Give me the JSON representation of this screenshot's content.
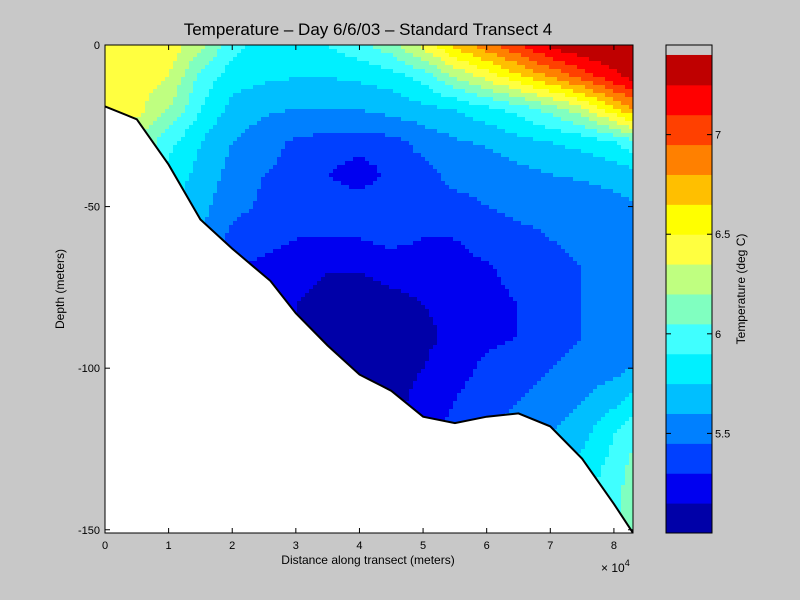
{
  "chart_data": {
    "type": "heatmap",
    "subtype": "filled-contour",
    "title": "Temperature – Day 6/6/03 – Standard Transect 4",
    "xlabel": "Distance along transect (meters)",
    "ylabel": "Depth (meters)",
    "x_scale_label": "× 10",
    "x_scale_exponent": "4",
    "xlim": [
      0,
      83000
    ],
    "ylim": [
      -151,
      0
    ],
    "x_ticks": [
      {
        "value": 0,
        "label": "0"
      },
      {
        "value": 10000,
        "label": "1"
      },
      {
        "value": 20000,
        "label": "2"
      },
      {
        "value": 30000,
        "label": "3"
      },
      {
        "value": 40000,
        "label": "4"
      },
      {
        "value": 50000,
        "label": "5"
      },
      {
        "value": 60000,
        "label": "6"
      },
      {
        "value": 70000,
        "label": "7"
      },
      {
        "value": 80000,
        "label": "8"
      }
    ],
    "y_ticks": [
      {
        "value": 0,
        "label": "0"
      },
      {
        "value": -50,
        "label": "-50"
      },
      {
        "value": -100,
        "label": "-100"
      },
      {
        "value": -150,
        "label": "-150"
      }
    ],
    "grid": false,
    "colormap": "jet",
    "colorbar": {
      "label": "Temperature (deg C)",
      "placement": "right",
      "range": [
        5.0,
        7.45
      ],
      "ticks": [
        {
          "value": 5.5,
          "label": "5.5"
        },
        {
          "value": 6.0,
          "label": "6"
        },
        {
          "value": 6.5,
          "label": "6.5"
        },
        {
          "value": 7.0,
          "label": "7"
        }
      ],
      "levels": [
        5.0,
        5.15,
        5.3,
        5.45,
        5.6,
        5.75,
        5.9,
        6.05,
        6.2,
        6.35,
        6.5,
        6.65,
        6.8,
        6.95,
        7.1,
        7.25,
        7.4
      ],
      "colors": [
        "#0000a8",
        "#0000f0",
        "#0040ff",
        "#0080ff",
        "#00bfff",
        "#00f0ff",
        "#40ffff",
        "#80ffc0",
        "#bfff80",
        "#ffff40",
        "#ffff00",
        "#ffbf00",
        "#ff8000",
        "#ff4000",
        "#ff0000",
        "#bf0000"
      ]
    },
    "x_grid": [
      0,
      5000,
      10000,
      15000,
      20000,
      25000,
      30000,
      35000,
      40000,
      45000,
      50000,
      55000,
      60000,
      65000,
      70000,
      75000,
      80000,
      83000
    ],
    "y_grid": [
      0,
      -10,
      -20,
      -30,
      -40,
      -50,
      -60,
      -70,
      -80,
      -90,
      -100,
      -110,
      -120,
      -130,
      -140,
      -150
    ],
    "temperature": [
      [
        6.5,
        6.48,
        6.45,
        6.25,
        5.95,
        5.85,
        5.85,
        5.9,
        6.0,
        6.15,
        6.4,
        6.7,
        6.9,
        7.1,
        7.3,
        7.4,
        7.4,
        7.4
      ],
      [
        6.45,
        6.43,
        6.35,
        6.0,
        5.82,
        5.78,
        5.75,
        5.75,
        5.78,
        5.82,
        5.95,
        6.2,
        6.4,
        6.6,
        6.8,
        7.0,
        7.2,
        7.3
      ],
      [
        6.45,
        6.4,
        6.2,
        5.9,
        5.7,
        5.62,
        5.6,
        5.6,
        5.6,
        5.65,
        5.7,
        5.75,
        5.85,
        5.95,
        6.1,
        6.3,
        6.6,
        6.8
      ],
      [
        6.4,
        6.2,
        5.95,
        5.75,
        5.6,
        5.52,
        5.42,
        5.4,
        5.38,
        5.4,
        5.5,
        5.58,
        5.62,
        5.7,
        5.75,
        5.8,
        5.9,
        6.0
      ],
      [
        6.3,
        6.0,
        5.85,
        5.7,
        5.55,
        5.45,
        5.4,
        5.3,
        5.2,
        5.35,
        5.4,
        5.5,
        5.5,
        5.55,
        5.6,
        5.62,
        5.65,
        5.7
      ],
      [
        6.2,
        5.9,
        5.78,
        5.65,
        5.5,
        5.42,
        5.4,
        5.4,
        5.4,
        5.45,
        5.4,
        5.4,
        5.45,
        5.5,
        5.5,
        5.52,
        5.55,
        5.58
      ],
      [
        6.1,
        5.8,
        5.7,
        5.6,
        5.4,
        5.35,
        5.3,
        5.3,
        5.3,
        5.35,
        5.3,
        5.3,
        5.35,
        5.4,
        5.45,
        5.48,
        5.5,
        5.52
      ],
      [
        6.0,
        5.75,
        5.65,
        5.55,
        5.3,
        5.25,
        5.2,
        5.15,
        5.15,
        5.18,
        5.2,
        5.25,
        5.28,
        5.35,
        5.4,
        5.45,
        5.5,
        5.55
      ],
      [
        5.9,
        5.7,
        5.6,
        5.5,
        5.25,
        5.2,
        5.15,
        5.1,
        5.1,
        5.12,
        5.15,
        5.2,
        5.25,
        5.3,
        5.38,
        5.45,
        5.55,
        5.6
      ],
      [
        5.85,
        5.7,
        5.6,
        5.5,
        5.25,
        5.2,
        5.15,
        5.08,
        5.08,
        5.1,
        5.12,
        5.18,
        5.25,
        5.3,
        5.38,
        5.45,
        5.5,
        5.55
      ],
      [
        5.85,
        5.7,
        5.6,
        5.5,
        5.25,
        5.2,
        5.15,
        5.08,
        5.05,
        5.08,
        5.15,
        5.22,
        5.35,
        5.4,
        5.45,
        5.5,
        5.55,
        5.6
      ],
      [
        5.85,
        5.7,
        5.6,
        5.5,
        5.25,
        5.2,
        5.15,
        5.1,
        5.05,
        5.1,
        5.2,
        5.3,
        5.4,
        5.45,
        5.5,
        5.6,
        5.7,
        5.8
      ],
      [
        5.85,
        5.7,
        5.6,
        5.5,
        5.25,
        5.2,
        5.15,
        5.1,
        5.1,
        5.15,
        5.25,
        5.35,
        5.45,
        5.5,
        5.6,
        5.7,
        5.9,
        6.0
      ],
      [
        5.85,
        5.7,
        5.6,
        5.5,
        5.25,
        5.2,
        5.15,
        5.1,
        5.1,
        5.15,
        5.25,
        5.4,
        5.5,
        5.55,
        5.65,
        5.8,
        5.95,
        6.1
      ],
      [
        5.85,
        5.7,
        5.6,
        5.5,
        5.25,
        5.2,
        5.15,
        5.1,
        5.1,
        5.15,
        5.25,
        5.4,
        5.5,
        5.55,
        5.7,
        5.85,
        6.0,
        6.15
      ],
      [
        5.85,
        5.7,
        5.6,
        5.5,
        5.25,
        5.2,
        5.15,
        5.1,
        5.1,
        5.15,
        5.25,
        5.4,
        5.5,
        5.55,
        5.7,
        5.85,
        6.0,
        6.15
      ]
    ],
    "bottom_profile": {
      "x": [
        0,
        5000,
        10000,
        15000,
        20000,
        26000,
        30000,
        35000,
        40000,
        45000,
        50000,
        55000,
        60000,
        65000,
        70000,
        75000,
        80000,
        83000
      ],
      "depth": [
        -19,
        -23,
        -37,
        -54,
        -63,
        -73,
        -83,
        -93,
        -102,
        -107,
        -115,
        -117,
        -115,
        -114,
        -118,
        -128,
        -142,
        -151
      ]
    }
  }
}
